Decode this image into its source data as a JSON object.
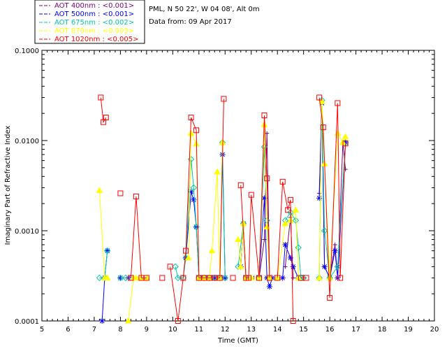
{
  "legend": {
    "entries": [
      {
        "label": "AOT  400nm : <0.001>",
        "color": "#7a007a"
      },
      {
        "label": "AOT  500nm : <0.001>",
        "color": "#0000ff"
      },
      {
        "label": "AOT  675nm : <0.002>",
        "color": "#00c8a0"
      },
      {
        "label": "AOT  870nm : <0.003>",
        "color": "#ffff00"
      },
      {
        "label": "AOT 1020nm : <0.005>",
        "color": "#ff0000"
      }
    ]
  },
  "header": {
    "site": "PML, N 50 22', W 04 08', Alt 0m",
    "date": "Data from: 09 Apr 2017"
  },
  "chart_data": {
    "type": "line",
    "title": "PML, N 50 22', W 04 08', Alt 0m",
    "xlabel": "Time (GMT)",
    "ylabel": "Imaginary Part of Refractive Index",
    "xlim": [
      5,
      20
    ],
    "ylim": [
      0.0001,
      0.1
    ],
    "yscale": "log",
    "xticks": [
      "5",
      "6",
      "7",
      "8",
      "9",
      "10",
      "11",
      "12",
      "13",
      "14",
      "15",
      "16",
      "17",
      "18",
      "19",
      "20"
    ],
    "yticks": [
      "0.0001",
      "0.0010",
      "0.0100",
      "0.1000"
    ],
    "series": [
      {
        "name": "AOT  400nm",
        "color": "#7a007a",
        "marker": "plus",
        "segments": [
          [
            [
              12.6,
              0.0004
            ],
            [
              12.7,
              0.0012
            ],
            [
              12.8,
              0.0003
            ],
            [
              13.0,
              0.0003
            ],
            [
              13.1,
              0.0003
            ],
            [
              13.2,
              0.0003
            ],
            [
              13.3,
              0.0003
            ],
            [
              13.5,
              0.0008
            ],
            [
              13.6,
              0.012
            ],
            [
              13.7,
              0.0003
            ]
          ],
          [
            [
              14.3,
              0.0004
            ],
            [
              14.5,
              0.0014
            ],
            [
              14.6,
              0.0003
            ]
          ],
          [
            [
              15.6,
              0.0026
            ],
            [
              15.7,
              0.027
            ],
            [
              15.8,
              0.0004
            ],
            [
              16.0,
              0.0003
            ],
            [
              16.2,
              0.0007
            ],
            [
              16.3,
              0.0003
            ],
            [
              16.5,
              0.0095
            ],
            [
              16.6,
              0.0048
            ]
          ]
        ]
      },
      {
        "name": "AOT  500nm",
        "color": "#0000ff",
        "marker": "asterisk",
        "segments": [
          [
            [
              7.3,
              0.0001
            ],
            [
              7.4,
              0.0003
            ],
            [
              7.5,
              0.0006
            ]
          ],
          [
            [
              8.0,
              0.0003
            ],
            [
              8.3,
              0.0003
            ]
          ],
          [
            [
              10.5,
              0.0005
            ],
            [
              10.7,
              0.0027
            ],
            [
              10.8,
              0.0022
            ],
            [
              10.9,
              0.0011
            ],
            [
              11.0,
              0.0003
            ],
            [
              11.2,
              0.0003
            ],
            [
              11.4,
              0.0003
            ],
            [
              11.6,
              0.0003
            ],
            [
              11.8,
              0.0003
            ],
            [
              11.9,
              0.007
            ],
            [
              12.0,
              0.0003
            ]
          ],
          [
            [
              12.6,
              0.0004
            ],
            [
              12.7,
              0.0012
            ],
            [
              12.8,
              0.0003
            ],
            [
              13.3,
              0.0003
            ],
            [
              13.5,
              0.0023
            ],
            [
              13.6,
              0.0003
            ],
            [
              13.7,
              0.00024
            ],
            [
              13.8,
              0.0003
            ]
          ],
          [
            [
              14.2,
              0.0003
            ],
            [
              14.3,
              0.0007
            ],
            [
              14.5,
              0.0005
            ],
            [
              14.6,
              0.0004
            ],
            [
              14.8,
              0.0003
            ]
          ],
          [
            [
              15.6,
              0.0023
            ],
            [
              15.7,
              0.026
            ],
            [
              15.8,
              0.0004
            ],
            [
              16.0,
              0.0003
            ],
            [
              16.2,
              0.0006
            ],
            [
              16.3,
              0.0003
            ],
            [
              16.6,
              0.0095
            ]
          ]
        ]
      },
      {
        "name": "AOT  675nm",
        "color": "#00c8a0",
        "marker": "diamond",
        "segments": [
          [
            [
              7.2,
              0.0003
            ],
            [
              7.4,
              0.0003
            ],
            [
              7.5,
              0.0006
            ]
          ],
          [
            [
              8.0,
              0.0003
            ],
            [
              8.2,
              0.0003
            ]
          ],
          [
            [
              10.1,
              0.0004
            ],
            [
              10.2,
              0.0003
            ],
            [
              10.4,
              0.0003
            ],
            [
              10.5,
              0.0005
            ],
            [
              10.7,
              0.0062
            ],
            [
              10.8,
              0.003
            ],
            [
              10.9,
              0.0011
            ],
            [
              11.0,
              0.0003
            ],
            [
              11.2,
              0.0003
            ],
            [
              11.4,
              0.0003
            ],
            [
              11.6,
              0.0003
            ],
            [
              11.8,
              0.0003
            ],
            [
              11.9,
              0.0095
            ],
            [
              12.0,
              0.0003
            ]
          ],
          [
            [
              12.5,
              0.0004
            ],
            [
              12.7,
              0.0012
            ],
            [
              12.8,
              0.0003
            ],
            [
              13.3,
              0.0003
            ],
            [
              13.5,
              0.0085
            ],
            [
              13.6,
              0.0013
            ],
            [
              13.7,
              0.0003
            ]
          ],
          [
            [
              14.3,
              0.0013
            ],
            [
              14.5,
              0.0016
            ],
            [
              14.7,
              0.0013
            ],
            [
              14.8,
              0.00065
            ],
            [
              14.9,
              0.0003
            ],
            [
              15.0,
              0.0003
            ]
          ],
          [
            [
              15.6,
              0.0003
            ],
            [
              15.7,
              0.028
            ],
            [
              15.8,
              0.001
            ],
            [
              16.0,
              0.0003
            ],
            [
              16.3,
              0.0004
            ],
            [
              16.6,
              0.0095
            ]
          ]
        ]
      },
      {
        "name": "AOT  870nm",
        "color": "#ffff00",
        "marker": "triangle",
        "segments": [
          [
            [
              7.2,
              0.0028
            ],
            [
              7.4,
              0.0003
            ],
            [
              7.5,
              0.0003
            ]
          ],
          [
            [
              8.3,
              0.0001
            ],
            [
              8.5,
              0.0003
            ],
            [
              8.6,
              0.0003
            ],
            [
              8.8,
              0.0003
            ],
            [
              9.0,
              0.0003
            ]
          ],
          [
            [
              10.6,
              0.0005
            ],
            [
              10.7,
              0.012
            ],
            [
              10.9,
              0.0092
            ],
            [
              11.0,
              0.0003
            ],
            [
              11.2,
              0.0003
            ],
            [
              11.4,
              0.0003
            ],
            [
              11.5,
              0.0006
            ],
            [
              11.7,
              0.0045
            ],
            [
              11.8,
              0.0003
            ],
            [
              11.9,
              0.0095
            ]
          ],
          [
            [
              12.5,
              0.0008
            ],
            [
              12.6,
              0.0004
            ],
            [
              12.7,
              0.0012
            ],
            [
              12.8,
              0.0003
            ],
            [
              13.0,
              0.0003
            ],
            [
              13.3,
              0.0003
            ],
            [
              13.5,
              0.015
            ],
            [
              13.6,
              0.0011
            ],
            [
              13.7,
              0.0003
            ]
          ],
          [
            [
              14.0,
              0.0003
            ],
            [
              14.3,
              0.0012
            ],
            [
              14.5,
              0.0013
            ],
            [
              14.7,
              0.0017
            ],
            [
              14.8,
              0.0003
            ]
          ],
          [
            [
              15.6,
              0.0003
            ],
            [
              15.7,
              0.027
            ],
            [
              15.8,
              0.0055
            ],
            [
              16.0,
              0.0003
            ],
            [
              16.3,
              0.012
            ],
            [
              16.5,
              0.0095
            ],
            [
              16.6,
              0.011
            ]
          ]
        ]
      },
      {
        "name": "AOT 1020nm",
        "color": "#ff0000",
        "marker": "square",
        "segments": [
          [
            [
              7.25,
              0.03
            ],
            [
              7.35,
              0.016
            ],
            [
              7.45,
              0.018
            ]
          ],
          [
            [
              8.0,
              0.0026
            ]
          ],
          [
            [
              8.4,
              0.0003
            ],
            [
              8.6,
              0.0024
            ],
            [
              8.8,
              0.0003
            ],
            [
              9.0,
              0.0003
            ]
          ],
          [
            [
              9.6,
              0.0003
            ]
          ],
          [
            [
              9.9,
              0.0004
            ],
            [
              10.2,
              0.0001
            ],
            [
              10.4,
              0.0003
            ],
            [
              10.5,
              0.0006
            ],
            [
              10.7,
              0.018
            ],
            [
              10.9,
              0.013
            ],
            [
              11.0,
              0.0003
            ],
            [
              11.2,
              0.0003
            ],
            [
              11.4,
              0.0003
            ],
            [
              11.6,
              0.0003
            ],
            [
              11.8,
              0.0003
            ],
            [
              11.95,
              0.029
            ]
          ],
          [
            [
              12.3,
              0.0003
            ]
          ],
          [
            [
              12.6,
              0.0032
            ],
            [
              12.8,
              0.0003
            ],
            [
              12.9,
              0.0003
            ],
            [
              13.0,
              0.0025
            ],
            [
              13.3,
              0.0003
            ],
            [
              13.5,
              0.019
            ],
            [
              13.6,
              0.0038
            ],
            [
              13.7,
              0.0003
            ]
          ],
          [
            [
              14.0,
              0.0003
            ],
            [
              14.2,
              0.0035
            ],
            [
              14.4,
              0.0017
            ],
            [
              14.5,
              0.0022
            ],
            [
              14.6,
              0.0001
            ]
          ],
          [
            [
              14.9,
              0.0003
            ],
            [
              15.1,
              0.0003
            ]
          ],
          [
            [
              15.6,
              0.03
            ],
            [
              15.75,
              0.014
            ],
            [
              16.0,
              0.00018
            ],
            [
              16.3,
              0.026
            ],
            [
              16.4,
              0.0003
            ],
            [
              16.6,
              0.0093
            ]
          ]
        ]
      }
    ]
  }
}
